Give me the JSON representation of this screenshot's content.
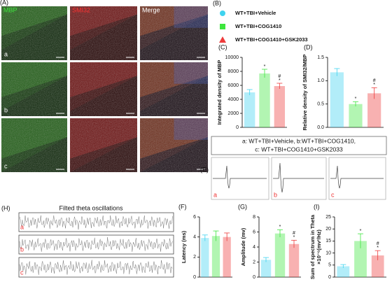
{
  "figure": {
    "panels": {
      "a": "(A)",
      "b": "(B)",
      "e": "(E)",
      "h": "(H)"
    },
    "image_columns": [
      "MBP",
      "SMI32",
      "Merge"
    ],
    "image_rows": [
      "a",
      "b",
      "c"
    ],
    "legend": [
      {
        "name": "WT+TBI+Vehicle",
        "color": "#3fd3ef"
      },
      {
        "name": "WT+TBI+COG1410",
        "color": "#3ee63e"
      },
      {
        "name": "WT+TBI+COG1410+GSK2033",
        "color": "#ee3b3b"
      }
    ],
    "groups_note": [
      "a: WT+TBI+Vehicle, b:WT+TBI+COG1410,",
      "c: WT+TBI+COG1410+GSK2033"
    ],
    "trace_labels": [
      "a",
      "b",
      "c"
    ],
    "theta_title": "Filted theta oscillations",
    "theta_labels": [
      "a",
      "b",
      "c"
    ]
  },
  "chart_data": [
    {
      "type": "bar",
      "panel": "(C)",
      "ylabel": "Integrated density of MBP",
      "categories": [
        null,
        null,
        null
      ],
      "values": [
        5000,
        7700,
        5900
      ],
      "errors": [
        400,
        600,
        400
      ],
      "colors": [
        "#3fd3ef",
        "#3ee63e",
        "#ee3b3b"
      ],
      "bar_marks": [
        null,
        [
          "*"
        ],
        [
          "#",
          "*"
        ]
      ],
      "ylim": [
        0,
        10000
      ],
      "yticks": [
        0,
        2000,
        4000,
        6000,
        8000,
        10000
      ]
    },
    {
      "type": "bar",
      "panel": "(D)",
      "ylabel": "Relative density of SMI32/MBP",
      "categories": [
        null,
        null,
        null
      ],
      "values": [
        1.18,
        0.5,
        0.73
      ],
      "errors": [
        0.08,
        0.05,
        0.12
      ],
      "colors": [
        "#3fd3ef",
        "#3ee63e",
        "#ee3b3b"
      ],
      "bar_marks": [
        null,
        [
          "*"
        ],
        [
          "#",
          "*"
        ]
      ],
      "ylim": [
        0,
        1.5
      ],
      "yticks": [
        {
          "value": 0,
          "label": "0.0"
        },
        0.5,
        {
          "value": 1,
          "label": "1.0"
        },
        1.5
      ]
    },
    {
      "type": "bar",
      "panel": "(F)",
      "ylabel": "Latency (ms)",
      "categories": [
        null,
        null,
        null
      ],
      "values": [
        3.9,
        4.1,
        4.0
      ],
      "errors": [
        0.3,
        0.5,
        0.4
      ],
      "colors": [
        "#3fd3ef",
        "#3ee63e",
        "#ee3b3b"
      ],
      "bar_marks": [
        null,
        null,
        null
      ],
      "ylim": [
        0,
        6
      ],
      "yticks": [
        0,
        2,
        4,
        6
      ]
    },
    {
      "type": "bar",
      "panel": "(G)",
      "ylabel": "Amplitude (mv)",
      "categories": [
        null,
        null,
        null
      ],
      "values": [
        2.3,
        5.8,
        4.4
      ],
      "errors": [
        0.3,
        0.5,
        0.5
      ],
      "colors": [
        "#3fd3ef",
        "#3ee63e",
        "#ee3b3b"
      ],
      "bar_marks": [
        null,
        [
          "*"
        ],
        [
          "#",
          "*"
        ]
      ],
      "ylim": [
        0,
        8
      ],
      "yticks": [
        0,
        2,
        4,
        6,
        8
      ]
    },
    {
      "type": "bar",
      "panel": "(I)",
      "ylabel": [
        "Sum of spectrum in Theta",
        "×10⁻⁶(mv²/Hz)"
      ],
      "categories": [
        null,
        null,
        null
      ],
      "values": [
        4.5,
        15,
        9
      ],
      "errors": [
        0.7,
        3,
        2
      ],
      "colors": [
        "#3fd3ef",
        "#3ee63e",
        "#ee3b3b"
      ],
      "bar_marks": [
        null,
        [
          "*"
        ],
        [
          "#",
          "*"
        ]
      ],
      "ylim": [
        0,
        25
      ],
      "yticks": [
        0,
        5,
        10,
        15,
        20,
        25
      ]
    }
  ]
}
